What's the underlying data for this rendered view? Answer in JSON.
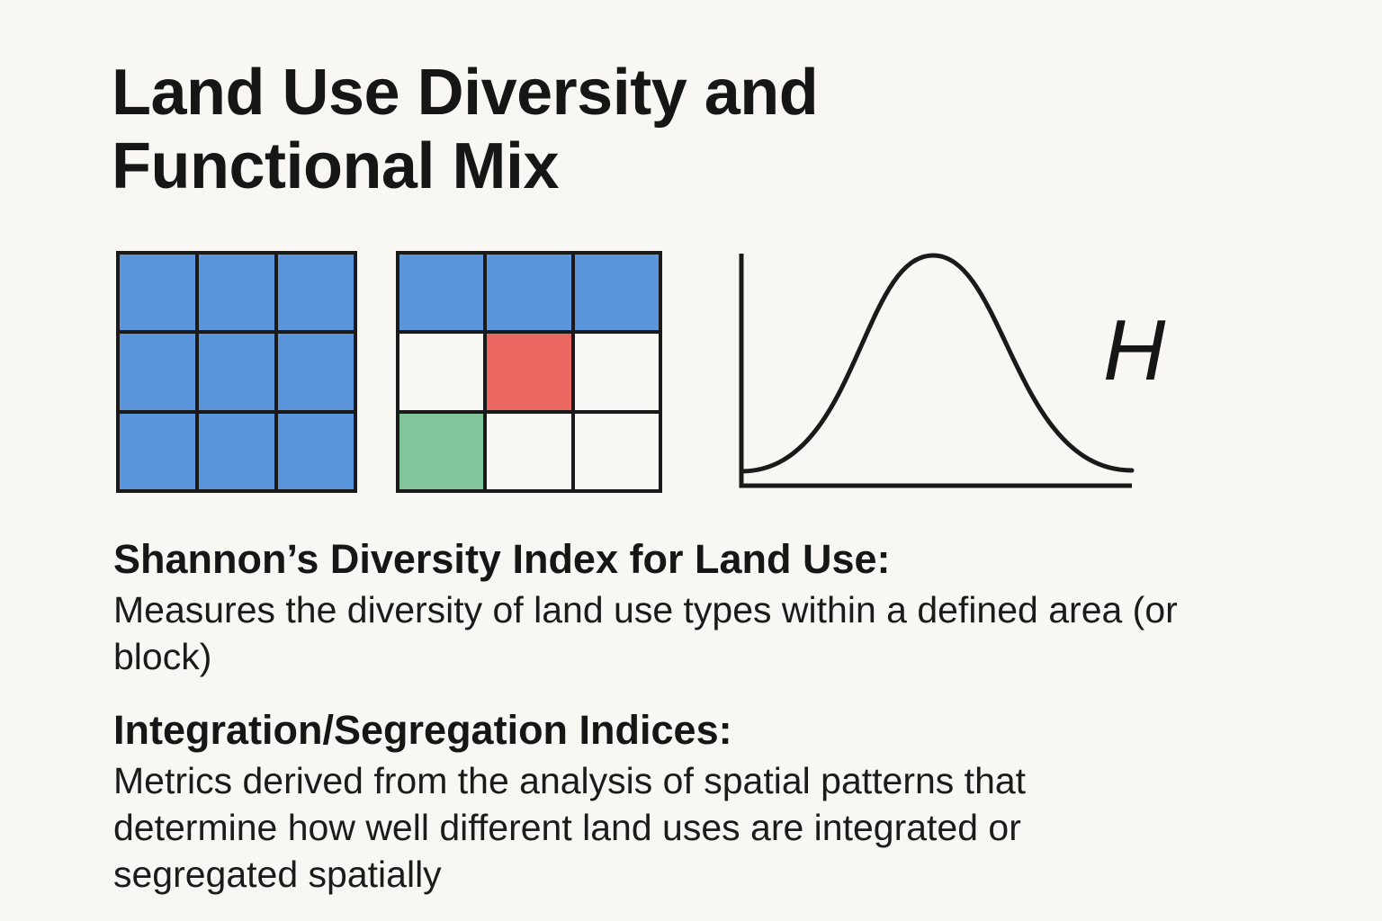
{
  "title_lines": [
    "Land Use Diversity and",
    "Functional Mix"
  ],
  "colors": {
    "background": "#f9f7f3",
    "outline": "#1a1a1a",
    "residential_blue": "#5b96dc",
    "commercial_red": "#ea6762",
    "green_space": "#83c59a",
    "empty": "#f9f7f3"
  },
  "illustrations": {
    "uniform_grid": {
      "cells": [
        "blue",
        "blue",
        "blue",
        "blue",
        "blue",
        "blue",
        "blue",
        "blue",
        "blue"
      ]
    },
    "mixed_grid": {
      "cells": [
        "blue",
        "blue",
        "blue",
        "empty",
        "red",
        "empty",
        "green",
        "empty",
        "empty"
      ]
    },
    "curve_label": "H"
  },
  "sections": {
    "shannon": {
      "heading": "Shannon’s Diversity Index for Land Use:",
      "body": "Measures the diversity of land use types within a defined area (or block)"
    },
    "integration": {
      "heading": "Integration/Segregation Indices:",
      "body": "Metrics derived from the analysis of spatial patterns that determine how well different land uses are integrated or segregated spatially"
    }
  }
}
